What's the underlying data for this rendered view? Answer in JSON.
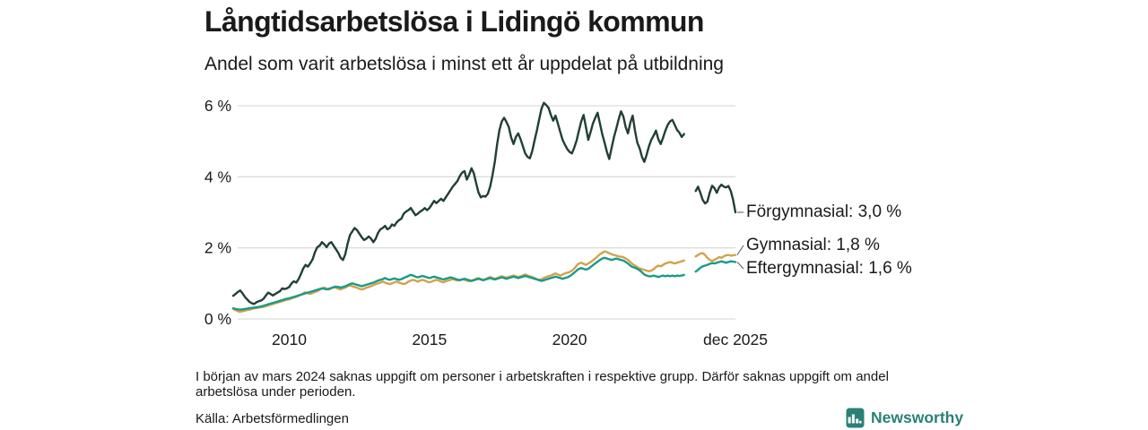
{
  "header": {
    "title": "Långtidsarbetslösa i Lidingö kommun",
    "subtitle": "Andel som varit arbetslösa i minst ett år uppdelat på utbildning"
  },
  "chart_data": {
    "type": "line",
    "title": "Långtidsarbetslösa i Lidingö kommun",
    "subtitle": "Andel som varit arbetslösa i minst ett år uppdelat på utbildning",
    "unit": "%",
    "x_axis": {
      "start_year": 2008,
      "interval": "monthly",
      "end_label_period": "dec 2025",
      "ticks": [
        {
          "t": 2010,
          "label": "2010"
        },
        {
          "t": 2015,
          "label": "2015"
        },
        {
          "t": 2020,
          "label": "2020"
        },
        {
          "t": 2025.917,
          "label": "dec 2025"
        }
      ],
      "data_gap": "2024-03 till 2024-06 (uppgift saknas)"
    },
    "y_axis": {
      "range": [
        0,
        6.2
      ],
      "grid": true,
      "ticks": [
        {
          "value": 0,
          "label": "0 %"
        },
        {
          "value": 2,
          "label": "2 %"
        },
        {
          "value": 4,
          "label": "4 %"
        },
        {
          "value": 6,
          "label": "6 %"
        }
      ]
    },
    "series": [
      {
        "name": "Förgymnasial",
        "end_label": "Förgymnasial: 3,0 %",
        "end_value_label": "3,0 %",
        "color": "#213f38",
        "values": [
          0.65,
          0.7,
          0.76,
          0.8,
          0.72,
          0.62,
          0.55,
          0.48,
          0.44,
          0.42,
          0.47,
          0.5,
          0.52,
          0.57,
          0.66,
          0.74,
          0.7,
          0.66,
          0.7,
          0.74,
          0.78,
          0.86,
          0.84,
          0.86,
          0.9,
          1.0,
          1.06,
          1.02,
          1.12,
          1.26,
          1.42,
          1.52,
          1.47,
          1.57,
          1.68,
          1.88,
          2.02,
          2.06,
          2.16,
          2.1,
          2.02,
          2.12,
          2.16,
          2.06,
          1.96,
          1.86,
          1.72,
          1.66,
          1.82,
          2.12,
          2.36,
          2.46,
          2.56,
          2.5,
          2.4,
          2.3,
          2.22,
          2.26,
          2.32,
          2.26,
          2.16,
          2.26,
          2.42,
          2.52,
          2.56,
          2.62,
          2.52,
          2.56,
          2.66,
          2.62,
          2.72,
          2.78,
          2.82,
          2.96,
          3.02,
          3.06,
          3.12,
          3.02,
          2.92,
          2.96,
          3.02,
          3.06,
          3.12,
          3.06,
          3.12,
          3.22,
          3.32,
          3.26,
          3.32,
          3.38,
          3.32,
          3.42,
          3.52,
          3.62,
          3.72,
          3.8,
          3.88,
          4.02,
          4.12,
          4.16,
          3.92,
          4.06,
          4.24,
          4.1,
          3.82,
          3.56,
          3.42,
          3.46,
          3.44,
          3.52,
          3.72,
          4.04,
          4.42,
          4.92,
          5.32,
          5.56,
          5.66,
          5.54,
          5.4,
          5.1,
          4.92,
          5.12,
          5.22,
          5.06,
          4.86,
          4.66,
          4.56,
          4.52,
          4.72,
          5.02,
          5.3,
          5.62,
          5.92,
          6.08,
          6.02,
          5.94,
          5.74,
          5.58,
          5.72,
          5.5,
          5.26,
          5.04,
          4.9,
          4.78,
          4.7,
          4.66,
          4.82,
          5.02,
          5.3,
          5.56,
          5.74,
          5.4,
          5.04,
          5.26,
          5.5,
          5.66,
          5.8,
          5.5,
          5.2,
          4.96,
          4.7,
          4.5,
          4.82,
          5.12,
          5.36,
          5.62,
          5.84,
          5.7,
          5.4,
          5.22,
          5.52,
          5.72,
          5.3,
          4.96,
          4.8,
          4.56,
          4.42,
          4.62,
          4.86,
          5.04,
          5.16,
          5.3,
          5.06,
          4.92,
          5.1,
          5.3,
          5.46,
          5.56,
          5.6,
          5.46,
          5.32,
          5.24,
          5.12,
          5.2,
          null,
          null,
          null,
          null,
          3.6,
          3.72,
          3.55,
          3.35,
          3.25,
          3.3,
          3.55,
          3.75,
          3.68,
          3.55,
          3.7,
          3.78,
          3.72,
          3.7,
          3.74,
          3.6,
          3.35,
          3.0
        ]
      },
      {
        "name": "Gymnasial",
        "end_label": "Gymnasial: 1,8 %",
        "end_value_label": "1,8 %",
        "color": "#d2a24c",
        "values": [
          0.28,
          0.25,
          0.22,
          0.2,
          0.22,
          0.23,
          0.25,
          0.26,
          0.28,
          0.3,
          0.3,
          0.32,
          0.33,
          0.34,
          0.36,
          0.38,
          0.4,
          0.42,
          0.44,
          0.46,
          0.48,
          0.5,
          0.52,
          0.54,
          0.55,
          0.58,
          0.6,
          0.62,
          0.65,
          0.68,
          0.72,
          0.75,
          0.72,
          0.7,
          0.73,
          0.76,
          0.78,
          0.82,
          0.86,
          0.88,
          0.85,
          0.83,
          0.86,
          0.9,
          0.88,
          0.85,
          0.83,
          0.86,
          0.88,
          0.92,
          0.95,
          0.92,
          0.9,
          0.88,
          0.85,
          0.83,
          0.85,
          0.88,
          0.9,
          0.92,
          0.95,
          0.98,
          1.0,
          1.02,
          1.05,
          1.02,
          1.0,
          0.98,
          1.0,
          1.03,
          1.05,
          1.02,
          1.0,
          0.98,
          1.0,
          1.05,
          1.08,
          1.1,
          1.08,
          1.05,
          1.08,
          1.1,
          1.08,
          1.05,
          1.03,
          1.05,
          1.08,
          1.1,
          1.08,
          1.05,
          1.03,
          1.06,
          1.08,
          1.1,
          1.12,
          1.1,
          1.08,
          1.1,
          1.12,
          1.1,
          1.08,
          1.06,
          1.08,
          1.1,
          1.13,
          1.15,
          1.12,
          1.1,
          1.12,
          1.15,
          1.18,
          1.15,
          1.13,
          1.15,
          1.18,
          1.2,
          1.18,
          1.16,
          1.18,
          1.2,
          1.22,
          1.2,
          1.18,
          1.2,
          1.22,
          1.25,
          1.22,
          1.2,
          1.18,
          1.15,
          1.12,
          1.1,
          1.12,
          1.15,
          1.18,
          1.2,
          1.22,
          1.25,
          1.28,
          1.25,
          1.22,
          1.25,
          1.28,
          1.3,
          1.32,
          1.36,
          1.42,
          1.5,
          1.56,
          1.58,
          1.55,
          1.52,
          1.56,
          1.6,
          1.65,
          1.7,
          1.76,
          1.82,
          1.86,
          1.9,
          1.88,
          1.85,
          1.82,
          1.8,
          1.78,
          1.76,
          1.75,
          1.74,
          1.7,
          1.66,
          1.6,
          1.54,
          1.5,
          1.46,
          1.42,
          1.4,
          1.38,
          1.36,
          1.34,
          1.36,
          1.4,
          1.46,
          1.5,
          1.48,
          1.52,
          1.56,
          1.58,
          1.6,
          1.58,
          1.56,
          1.58,
          1.6,
          1.62,
          1.64,
          null,
          null,
          null,
          null,
          1.76,
          1.8,
          1.84,
          1.85,
          1.8,
          1.72,
          1.66,
          1.63,
          1.66,
          1.7,
          1.74,
          1.72,
          1.76,
          1.79,
          1.8,
          1.78,
          1.79,
          1.8
        ]
      },
      {
        "name": "Eftergymnasial",
        "end_label": "Eftergymnasial: 1,6 %",
        "end_value_label": "1,6 %",
        "color": "#1a9a88",
        "values": [
          0.3,
          0.28,
          0.27,
          0.26,
          0.27,
          0.28,
          0.29,
          0.3,
          0.31,
          0.32,
          0.33,
          0.34,
          0.35,
          0.37,
          0.39,
          0.41,
          0.43,
          0.45,
          0.47,
          0.49,
          0.51,
          0.53,
          0.55,
          0.57,
          0.58,
          0.6,
          0.62,
          0.64,
          0.66,
          0.68,
          0.7,
          0.72,
          0.74,
          0.76,
          0.78,
          0.8,
          0.82,
          0.84,
          0.86,
          0.85,
          0.83,
          0.85,
          0.87,
          0.89,
          0.91,
          0.9,
          0.88,
          0.9,
          0.92,
          0.95,
          0.98,
          1.0,
          0.98,
          0.96,
          0.94,
          0.92,
          0.94,
          0.96,
          0.98,
          1.0,
          1.02,
          1.05,
          1.08,
          1.1,
          1.12,
          1.15,
          1.12,
          1.1,
          1.12,
          1.14,
          1.12,
          1.1,
          1.12,
          1.15,
          1.18,
          1.21,
          1.24,
          1.22,
          1.19,
          1.17,
          1.19,
          1.21,
          1.19,
          1.17,
          1.15,
          1.17,
          1.19,
          1.17,
          1.15,
          1.13,
          1.11,
          1.13,
          1.15,
          1.17,
          1.15,
          1.13,
          1.11,
          1.09,
          1.11,
          1.13,
          1.11,
          1.09,
          1.07,
          1.09,
          1.11,
          1.13,
          1.11,
          1.09,
          1.11,
          1.13,
          1.15,
          1.13,
          1.11,
          1.13,
          1.15,
          1.17,
          1.15,
          1.13,
          1.15,
          1.17,
          1.19,
          1.17,
          1.15,
          1.17,
          1.19,
          1.21,
          1.19,
          1.17,
          1.15,
          1.13,
          1.11,
          1.09,
          1.07,
          1.09,
          1.11,
          1.13,
          1.15,
          1.17,
          1.19,
          1.17,
          1.15,
          1.13,
          1.15,
          1.17,
          1.2,
          1.25,
          1.3,
          1.36,
          1.41,
          1.43,
          1.41,
          1.39,
          1.41,
          1.46,
          1.51,
          1.56,
          1.61,
          1.66,
          1.7,
          1.72,
          1.7,
          1.68,
          1.66,
          1.68,
          1.7,
          1.68,
          1.66,
          1.64,
          1.6,
          1.56,
          1.5,
          1.46,
          1.44,
          1.41,
          1.37,
          1.31,
          1.25,
          1.22,
          1.2,
          1.2,
          1.22,
          1.2,
          1.18,
          1.2,
          1.22,
          1.2,
          1.22,
          1.2,
          1.22,
          1.2,
          1.22,
          1.21,
          1.22,
          1.24,
          null,
          null,
          null,
          null,
          1.33,
          1.38,
          1.44,
          1.48,
          1.5,
          1.52,
          1.55,
          1.57,
          1.56,
          1.58,
          1.6,
          1.62,
          1.6,
          1.58,
          1.6,
          1.62,
          1.61,
          1.6
        ]
      }
    ]
  },
  "footnote": {
    "text": "I början av mars 2024 saknas uppgift om personer i arbetskraften i respektive grupp. Därför saknas uppgift om andel arbetslösa under perioden."
  },
  "source": {
    "text": "Källa: Arbetsförmedlingen"
  },
  "branding": {
    "name": "Newsworthy",
    "color": "#2b8076"
  },
  "colors": {
    "grid": "#dcdcdc",
    "leader": "#555555",
    "text": "#1a1a1a"
  }
}
